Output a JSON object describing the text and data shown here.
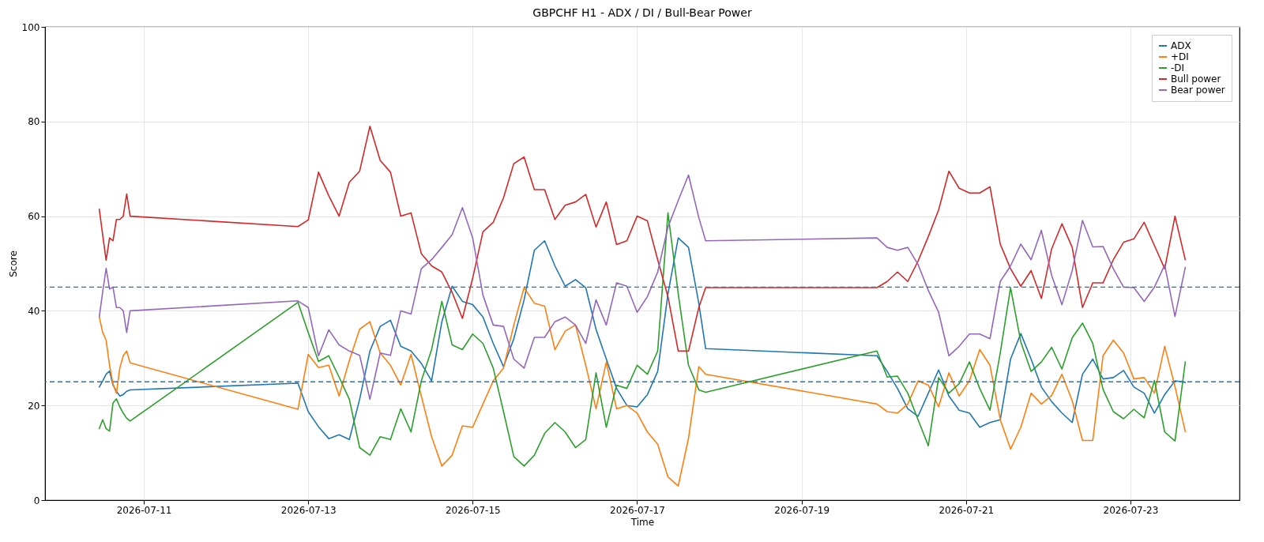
{
  "chart_data": {
    "type": "line",
    "title": "GBPCHF H1 - ADX / DI / Bull-Bear Power",
    "xlabel": "Time",
    "ylabel": "Score",
    "x": [
      "2026-07-10T11:00",
      "2026-07-10T12:00",
      "2026-07-10T13:00",
      "2026-07-10T14:00",
      "2026-07-10T15:00",
      "2026-07-10T16:00",
      "2026-07-10T17:00",
      "2026-07-10T18:00",
      "2026-07-10T19:00",
      "2026-07-10T20:00",
      "2026-07-12T21:00",
      "2026-07-13T00:00",
      "2026-07-13T03:00",
      "2026-07-13T06:00",
      "2026-07-13T09:00",
      "2026-07-13T12:00",
      "2026-07-13T15:00",
      "2026-07-13T18:00",
      "2026-07-13T21:00",
      "2026-07-14T00:00",
      "2026-07-14T03:00",
      "2026-07-14T06:00",
      "2026-07-14T09:00",
      "2026-07-14T12:00",
      "2026-07-14T15:00",
      "2026-07-14T18:00",
      "2026-07-14T21:00",
      "2026-07-15T00:00",
      "2026-07-15T03:00",
      "2026-07-15T06:00",
      "2026-07-15T09:00",
      "2026-07-15T12:00",
      "2026-07-15T15:00",
      "2026-07-15T18:00",
      "2026-07-15T21:00",
      "2026-07-16T00:00",
      "2026-07-16T03:00",
      "2026-07-16T06:00",
      "2026-07-16T09:00",
      "2026-07-16T12:00",
      "2026-07-16T15:00",
      "2026-07-16T18:00",
      "2026-07-16T21:00",
      "2026-07-17T00:00",
      "2026-07-17T03:00",
      "2026-07-17T06:00",
      "2026-07-17T09:00",
      "2026-07-17T12:00",
      "2026-07-17T15:00",
      "2026-07-17T18:00",
      "2026-07-17T20:00",
      "2026-07-19T22:00",
      "2026-07-20T01:00",
      "2026-07-20T04:00",
      "2026-07-20T07:00",
      "2026-07-20T10:00",
      "2026-07-20T13:00",
      "2026-07-20T16:00",
      "2026-07-20T19:00",
      "2026-07-20T22:00",
      "2026-07-21T01:00",
      "2026-07-21T04:00",
      "2026-07-21T07:00",
      "2026-07-21T10:00",
      "2026-07-21T13:00",
      "2026-07-21T16:00",
      "2026-07-21T19:00",
      "2026-07-21T22:00",
      "2026-07-22T01:00",
      "2026-07-22T04:00",
      "2026-07-22T07:00",
      "2026-07-22T10:00",
      "2026-07-22T13:00",
      "2026-07-22T16:00",
      "2026-07-22T19:00",
      "2026-07-22T22:00",
      "2026-07-23T01:00",
      "2026-07-23T04:00",
      "2026-07-23T07:00",
      "2026-07-23T10:00",
      "2026-07-23T13:00",
      "2026-07-23T16:00"
    ],
    "series": [
      {
        "name": "ADX",
        "color": "#1f77b4",
        "values": [
          23.9,
          25.2,
          26.6,
          27.3,
          24.3,
          23,
          22,
          22.3,
          23,
          23.3,
          24.7,
          18.7,
          15.5,
          13,
          13.8,
          12.8,
          21.3,
          31.5,
          36.7,
          38,
          32.5,
          31.5,
          28.9,
          25.2,
          37.7,
          45.2,
          42,
          41.3,
          38.7,
          33.1,
          28.2,
          34.1,
          42.3,
          52.8,
          54.8,
          49.5,
          45.2,
          46.6,
          44.9,
          36.1,
          29.8,
          23.6,
          20,
          19.7,
          22.3,
          27.2,
          43.6,
          55.4,
          53.4,
          41.6,
          32,
          30.5,
          27.2,
          23.6,
          19.3,
          17.7,
          22.6,
          27.5,
          22,
          19,
          18.4,
          15.4,
          16.4,
          17,
          29.8,
          35.2,
          29.8,
          23.9,
          20.8,
          18.4,
          16.4,
          26.6,
          29.8,
          25.6,
          25.9,
          27.4,
          23.9,
          22.6,
          18.4,
          22.3,
          25.2,
          24.9
        ]
      },
      {
        "name": "+DI",
        "color": "#ff7f0e",
        "values": [
          38.7,
          35.4,
          33.8,
          28.5,
          24.6,
          22.6,
          27.9,
          30.5,
          31.5,
          29,
          19.2,
          30.8,
          28,
          28.5,
          22,
          29.5,
          36.1,
          37.7,
          31.1,
          28.5,
          24.3,
          30.8,
          22,
          13.4,
          7.2,
          9.5,
          15.7,
          15.4,
          20.3,
          25.2,
          27.9,
          37,
          44.9,
          41.6,
          41,
          31.8,
          35.7,
          37,
          28.5,
          19.3,
          29.2,
          19.3,
          20,
          18.4,
          14.4,
          11.8,
          4.9,
          3,
          13.1,
          28.2,
          26.6,
          20.3,
          18.7,
          18.4,
          20.3,
          25.2,
          24.3,
          19.7,
          26.9,
          22,
          25.2,
          31.8,
          28.5,
          17,
          10.8,
          15.4,
          22.6,
          20.3,
          22.1,
          26.6,
          21,
          12.6,
          12.6,
          30.5,
          33.8,
          31.1,
          25.6,
          25.9,
          22.6,
          32.5,
          24,
          14.5
        ]
      },
      {
        "name": "-DI",
        "color": "#2ca02c",
        "values": [
          15.1,
          17,
          15.1,
          14.6,
          20.5,
          21.4,
          19.7,
          18.4,
          17.3,
          16.7,
          41.8,
          35.4,
          29.3,
          30.5,
          26,
          21.3,
          11.1,
          9.5,
          13.4,
          12.8,
          19.3,
          14.4,
          25.2,
          31.8,
          42,
          32.8,
          31.8,
          35.1,
          33.1,
          27.9,
          18.7,
          9.2,
          7.2,
          9.5,
          14.1,
          16.4,
          14.4,
          11.1,
          12.8,
          26.9,
          15.4,
          24.3,
          23.6,
          28.5,
          26.6,
          31.5,
          60.7,
          43.6,
          28.5,
          23.3,
          22.8,
          31.5,
          26,
          26.2,
          22.6,
          17,
          11.5,
          25.9,
          22.6,
          24.6,
          29.2,
          23.6,
          19,
          31.1,
          44.9,
          33.4,
          27.2,
          29.2,
          32.3,
          27.7,
          34.3,
          37.4,
          33.1,
          23.4,
          18.7,
          17.2,
          19.2,
          17.4,
          25.3,
          14.4,
          12.5,
          29.2
        ]
      },
      {
        "name": "Bull power",
        "color": "#d62728",
        "values": [
          61.5,
          56,
          50.7,
          55.4,
          54.8,
          59.3,
          59.3,
          60,
          64.7,
          60,
          57.8,
          59.2,
          69.3,
          64.3,
          60,
          67.2,
          69.5,
          79,
          71.8,
          69.3,
          60,
          60.7,
          52.1,
          49.5,
          48.2,
          43.9,
          38.4,
          46.9,
          56.7,
          58.7,
          63.9,
          71.1,
          72.5,
          65.6,
          65.6,
          59.3,
          62.3,
          63,
          64.6,
          57.7,
          63,
          54,
          54.8,
          60,
          59,
          50.8,
          43,
          31.5,
          31.5,
          40.7,
          44.9,
          44.9,
          46.2,
          48.2,
          46.2,
          50.5,
          55.7,
          61.3,
          69.5,
          65.9,
          64.9,
          64.9,
          66.2,
          54.1,
          48.9,
          45.2,
          48.5,
          42.6,
          53.1,
          58.4,
          53.4,
          40.7,
          45.9,
          45.9,
          50.8,
          54.5,
          55.2,
          58.7,
          53.8,
          48.9,
          60,
          50.8
        ]
      },
      {
        "name": "Bear power",
        "color": "#9467bd",
        "values": [
          38.7,
          44,
          49,
          44.6,
          45,
          40.7,
          40.7,
          40,
          35.4,
          40,
          42.1,
          40.7,
          30.5,
          36,
          32.8,
          31.5,
          30.6,
          21.3,
          31.1,
          30.6,
          40,
          39.3,
          48.9,
          50.8,
          53.4,
          56.1,
          61.8,
          55.4,
          43.3,
          37,
          36.7,
          29.8,
          27.9,
          34.4,
          34.4,
          37.7,
          38.7,
          37,
          33.1,
          42.3,
          37,
          45.9,
          45.2,
          39.7,
          43,
          48.2,
          57.7,
          63.3,
          68.7,
          59.7,
          54.8,
          55.4,
          53.4,
          52.8,
          53.4,
          49.8,
          44.3,
          39.7,
          30.5,
          32.5,
          35.1,
          35.1,
          34.1,
          46.2,
          49.5,
          54.1,
          50.8,
          57,
          47.5,
          41.3,
          48.5,
          59.1,
          53.5,
          53.6,
          48.9,
          45,
          44.9,
          42,
          45,
          49.7,
          38.8,
          49.2
        ]
      }
    ],
    "xlim": [
      "2026-07-09T19:10",
      "2026-07-24T07:50"
    ],
    "xticks": [
      "2026-07-11",
      "2026-07-13",
      "2026-07-15",
      "2026-07-17",
      "2026-07-19",
      "2026-07-21",
      "2026-07-23"
    ],
    "ylim": [
      0,
      100
    ],
    "yticks": [
      0,
      20,
      40,
      60,
      80,
      100
    ],
    "ref_lines": [
      {
        "axis": "y",
        "value": 45,
        "color": "#1f77b4",
        "line_style": "dashed"
      },
      {
        "axis": "y",
        "value": 25,
        "color": "#1f77b4",
        "line_style": "dashed"
      }
    ],
    "grid": true,
    "legend": "top right"
  }
}
